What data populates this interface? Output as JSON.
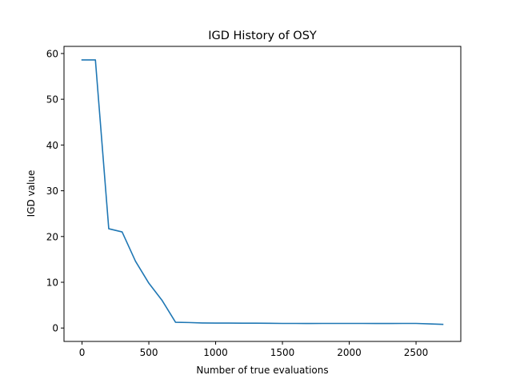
{
  "chart_data": {
    "type": "line",
    "title": "IGD History of OSY",
    "xlabel": "Number of true evaluations",
    "ylabel": "IGD value",
    "xlim": [
      -135,
      2835
    ],
    "ylim": [
      -2.93,
      61.56
    ],
    "xticks": [
      0,
      500,
      1000,
      1500,
      2000,
      2500
    ],
    "yticks": [
      0,
      10,
      20,
      30,
      40,
      50,
      60
    ],
    "grid": false,
    "legend": null,
    "series": [
      {
        "color": "#1f77b4",
        "x": [
          0,
          100,
          200,
          300,
          400,
          500,
          600,
          700,
          800,
          900,
          1000,
          1100,
          1200,
          1300,
          1400,
          1500,
          1600,
          1700,
          1800,
          1900,
          2000,
          2100,
          2200,
          2300,
          2400,
          2500,
          2600,
          2700
        ],
        "y": [
          58.6,
          58.6,
          21.7,
          21.0,
          14.6,
          9.8,
          6.0,
          1.25,
          1.2,
          1.1,
          1.08,
          1.07,
          1.06,
          1.05,
          1.04,
          1.0,
          1.0,
          0.99,
          1.0,
          1.0,
          1.0,
          1.0,
          0.99,
          0.99,
          1.0,
          1.0,
          0.9,
          0.8
        ]
      }
    ]
  }
}
